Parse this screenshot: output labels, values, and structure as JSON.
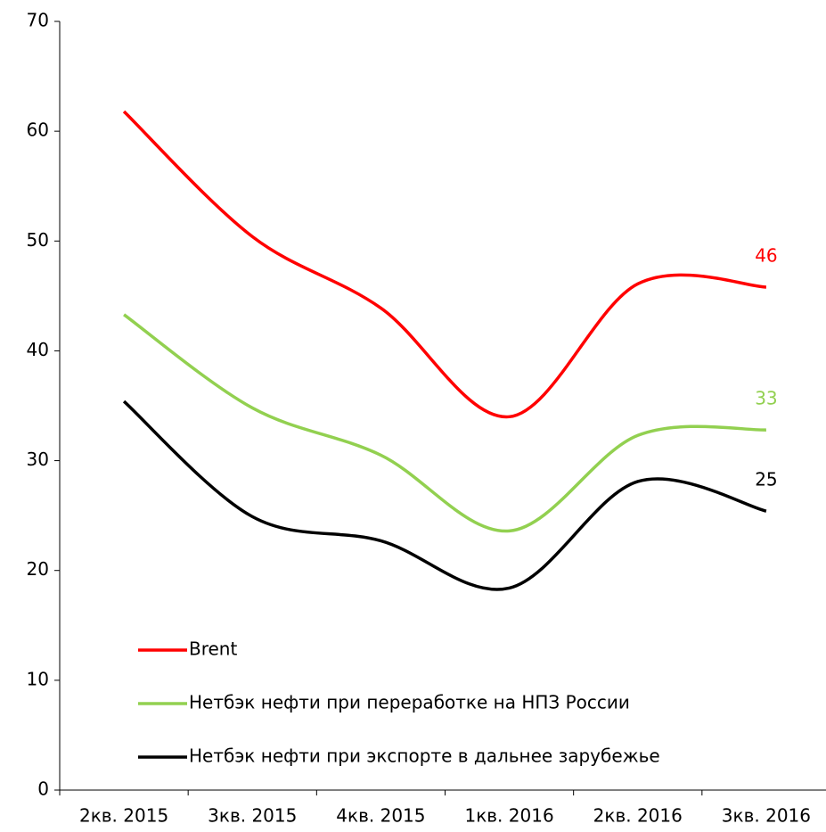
{
  "chart_data": {
    "type": "line",
    "categories": [
      "2кв. 2015",
      "3кв. 2015",
      "4кв. 2015",
      "1кв. 2016",
      "2кв. 2016",
      "3кв. 2016"
    ],
    "series": [
      {
        "name": "Brent",
        "color": "#ff0000",
        "values": [
          61.8,
          50.4,
          43.9,
          34.0,
          46.1,
          45.8
        ],
        "value_labels": [
          null,
          null,
          null,
          null,
          null,
          "46"
        ]
      },
      {
        "name": "Нетбэк нефти при переработке на НПЗ России",
        "color": "#92d050",
        "values": [
          43.3,
          34.8,
          30.5,
          23.6,
          32.3,
          32.8
        ],
        "value_labels": [
          null,
          null,
          null,
          null,
          null,
          "33"
        ]
      },
      {
        "name": "Нетбэк нефти при  экспорте в дальнее зарубежье",
        "color": "#000000",
        "values": [
          35.4,
          24.9,
          22.7,
          18.4,
          28.1,
          25.4
        ],
        "value_labels": [
          null,
          null,
          null,
          null,
          null,
          "25"
        ]
      }
    ],
    "ylim": [
      0,
      70
    ],
    "yticks": [
      0,
      10,
      20,
      30,
      40,
      50,
      60,
      70
    ],
    "grid": false,
    "legend": "lower left"
  }
}
